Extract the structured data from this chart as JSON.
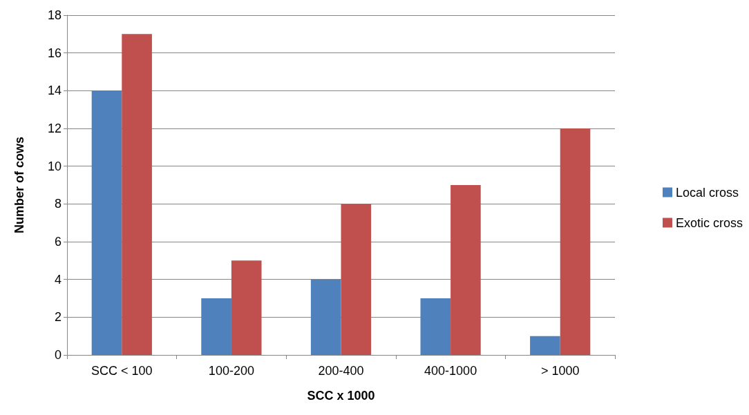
{
  "chart_data": {
    "type": "bar",
    "xlabel": "SCC x 1000",
    "ylabel": "Number of cows",
    "categories": [
      "SCC < 100",
      "100-200",
      "200-400",
      "400-1000",
      "> 1000"
    ],
    "series": [
      {
        "name": "Local cross",
        "color": "#4f81bd",
        "values": [
          14,
          3,
          4,
          3,
          1
        ]
      },
      {
        "name": "Exotic cross",
        "color": "#c0504d",
        "values": [
          17,
          5,
          8,
          9,
          12
        ]
      }
    ],
    "ylim": [
      0,
      18
    ],
    "yticks": [
      0,
      2,
      4,
      6,
      8,
      10,
      12,
      14,
      16,
      18
    ],
    "grid": "y",
    "legend": "right"
  }
}
